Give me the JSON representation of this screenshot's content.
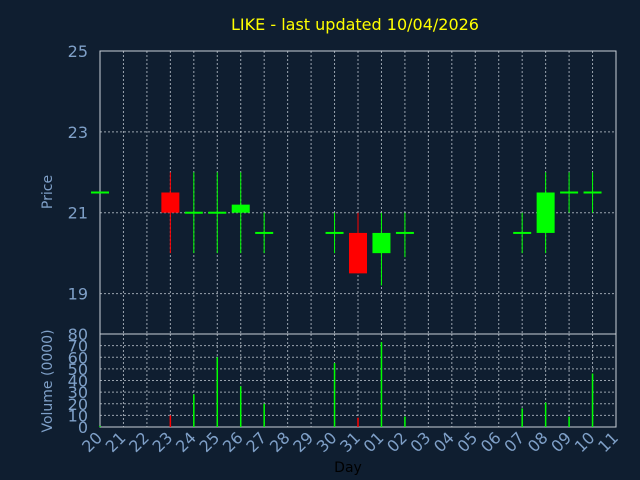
{
  "chart_data": [
    {
      "type": "candlestick",
      "title": "LIKE - last updated 10/04/2026",
      "ylabel": "Price",
      "ylim": [
        18,
        25
      ],
      "yticks": [
        19,
        21,
        23,
        25
      ],
      "grid": true,
      "categories": [
        "20",
        "21",
        "22",
        "23",
        "24",
        "25",
        "26",
        "27",
        "28",
        "29",
        "30",
        "31",
        "01",
        "02",
        "03",
        "04",
        "05",
        "06",
        "07",
        "08",
        "09",
        "10",
        "11"
      ],
      "series": [
        {
          "values": [
            {
              "x": "20",
              "open": 21.5,
              "high": 21.5,
              "low": 21.5,
              "close": 21.5
            },
            {
              "x": "23",
              "open": 21.5,
              "high": 22.0,
              "low": 20.0,
              "close": 21.0
            },
            {
              "x": "24",
              "open": 21.0,
              "high": 22.0,
              "low": 20.0,
              "close": 21.0
            },
            {
              "x": "25",
              "open": 21.0,
              "high": 22.0,
              "low": 20.0,
              "close": 21.0
            },
            {
              "x": "26",
              "open": 21.0,
              "high": 22.0,
              "low": 20.0,
              "close": 21.2
            },
            {
              "x": "27",
              "open": 20.5,
              "high": 21.0,
              "low": 20.0,
              "close": 20.5
            },
            {
              "x": "30",
              "open": 20.5,
              "high": 21.0,
              "low": 20.0,
              "close": 20.5
            },
            {
              "x": "31",
              "open": 20.5,
              "high": 21.0,
              "low": 19.5,
              "close": 19.5
            },
            {
              "x": "01",
              "open": 20.0,
              "high": 21.0,
              "low": 19.2,
              "close": 20.5
            },
            {
              "x": "02",
              "open": 20.5,
              "high": 21.0,
              "low": 19.9,
              "close": 20.5
            },
            {
              "x": "07",
              "open": 20.5,
              "high": 21.0,
              "low": 20.0,
              "close": 20.5
            },
            {
              "x": "08",
              "open": 20.5,
              "high": 22.0,
              "low": 20.0,
              "close": 21.5
            },
            {
              "x": "09",
              "open": 21.5,
              "high": 22.0,
              "low": 21.0,
              "close": 21.5
            },
            {
              "x": "10",
              "open": 21.5,
              "high": 22.0,
              "low": 21.0,
              "close": 21.5
            }
          ]
        }
      ]
    },
    {
      "type": "bar",
      "ylabel": "Volume (0000)",
      "xlabel": "Day",
      "ylim": [
        0,
        80
      ],
      "yticks": [
        0,
        10,
        20,
        30,
        40,
        50,
        60,
        70,
        80
      ],
      "grid": true,
      "categories": [
        "20",
        "21",
        "22",
        "23",
        "24",
        "25",
        "26",
        "27",
        "28",
        "29",
        "30",
        "31",
        "01",
        "02",
        "03",
        "04",
        "05",
        "06",
        "07",
        "08",
        "09",
        "10",
        "11"
      ],
      "series": [
        {
          "values": [
            {
              "x": "20",
              "value": 1,
              "color": "#00ff00"
            },
            {
              "x": "23",
              "value": 10,
              "color": "#ff0000"
            },
            {
              "x": "24",
              "value": 28,
              "color": "#00ff00"
            },
            {
              "x": "25",
              "value": 60,
              "color": "#00ff00"
            },
            {
              "x": "26",
              "value": 35,
              "color": "#00ff00"
            },
            {
              "x": "27",
              "value": 20,
              "color": "#00ff00"
            },
            {
              "x": "30",
              "value": 55,
              "color": "#00ff00"
            },
            {
              "x": "31",
              "value": 8,
              "color": "#ff0000"
            },
            {
              "x": "01",
              "value": 73,
              "color": "#00ff00"
            },
            {
              "x": "02",
              "value": 9,
              "color": "#00ff00"
            },
            {
              "x": "07",
              "value": 16,
              "color": "#00ff00"
            },
            {
              "x": "08",
              "value": 21,
              "color": "#00ff00"
            },
            {
              "x": "09",
              "value": 9,
              "color": "#00ff00"
            },
            {
              "x": "10",
              "value": 46,
              "color": "#00ff00"
            }
          ]
        }
      ]
    }
  ],
  "colors": {
    "background": "#0f1e30",
    "up": "#00ff00",
    "down": "#ff0000",
    "title": "#ffff00",
    "axis_text": "#7fa0c8"
  }
}
